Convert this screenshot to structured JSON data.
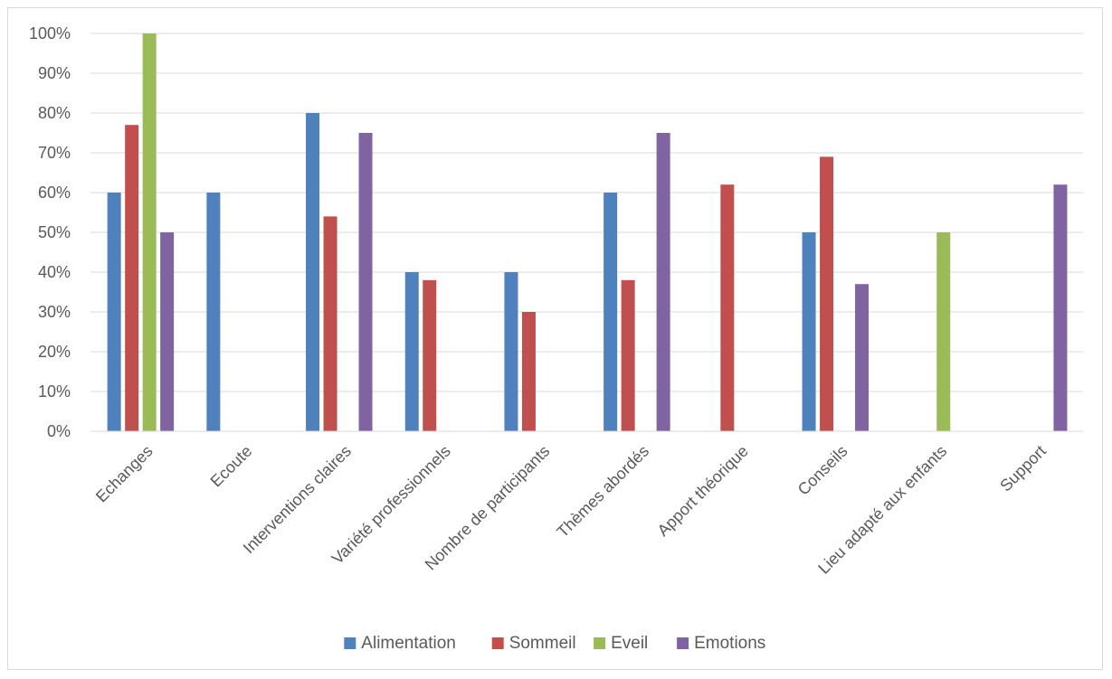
{
  "chart_data": {
    "type": "bar",
    "title": "",
    "xlabel": "",
    "ylabel": "",
    "ylim": [
      0,
      100
    ],
    "y_ticks": [
      "0%",
      "10%",
      "20%",
      "30%",
      "40%",
      "50%",
      "60%",
      "70%",
      "80%",
      "90%",
      "100%"
    ],
    "grid": true,
    "legend_position": "bottom",
    "categories": [
      "Echanges",
      "Ecoute",
      "Interventions claires",
      "Variété professionnels",
      "Nombre de participants",
      "Thèmes abordés",
      "Apport théorique",
      "Conseils",
      "Lieu adapté aux enfants",
      "Support"
    ],
    "series": [
      {
        "name": "Alimentation",
        "color": "#4f81bd",
        "values": [
          60,
          60,
          80,
          40,
          40,
          60,
          null,
          50,
          null,
          null
        ]
      },
      {
        "name": "Sommeil",
        "color": "#c0504d",
        "values": [
          77,
          null,
          54,
          38,
          30,
          38,
          62,
          69,
          null,
          null
        ]
      },
      {
        "name": "Eveil",
        "color": "#9bbb59",
        "values": [
          100,
          null,
          null,
          null,
          null,
          null,
          null,
          null,
          50,
          null
        ]
      },
      {
        "name": "Emotions",
        "color": "#8064a2",
        "values": [
          50,
          null,
          75,
          null,
          null,
          75,
          null,
          37,
          null,
          62
        ]
      }
    ]
  }
}
